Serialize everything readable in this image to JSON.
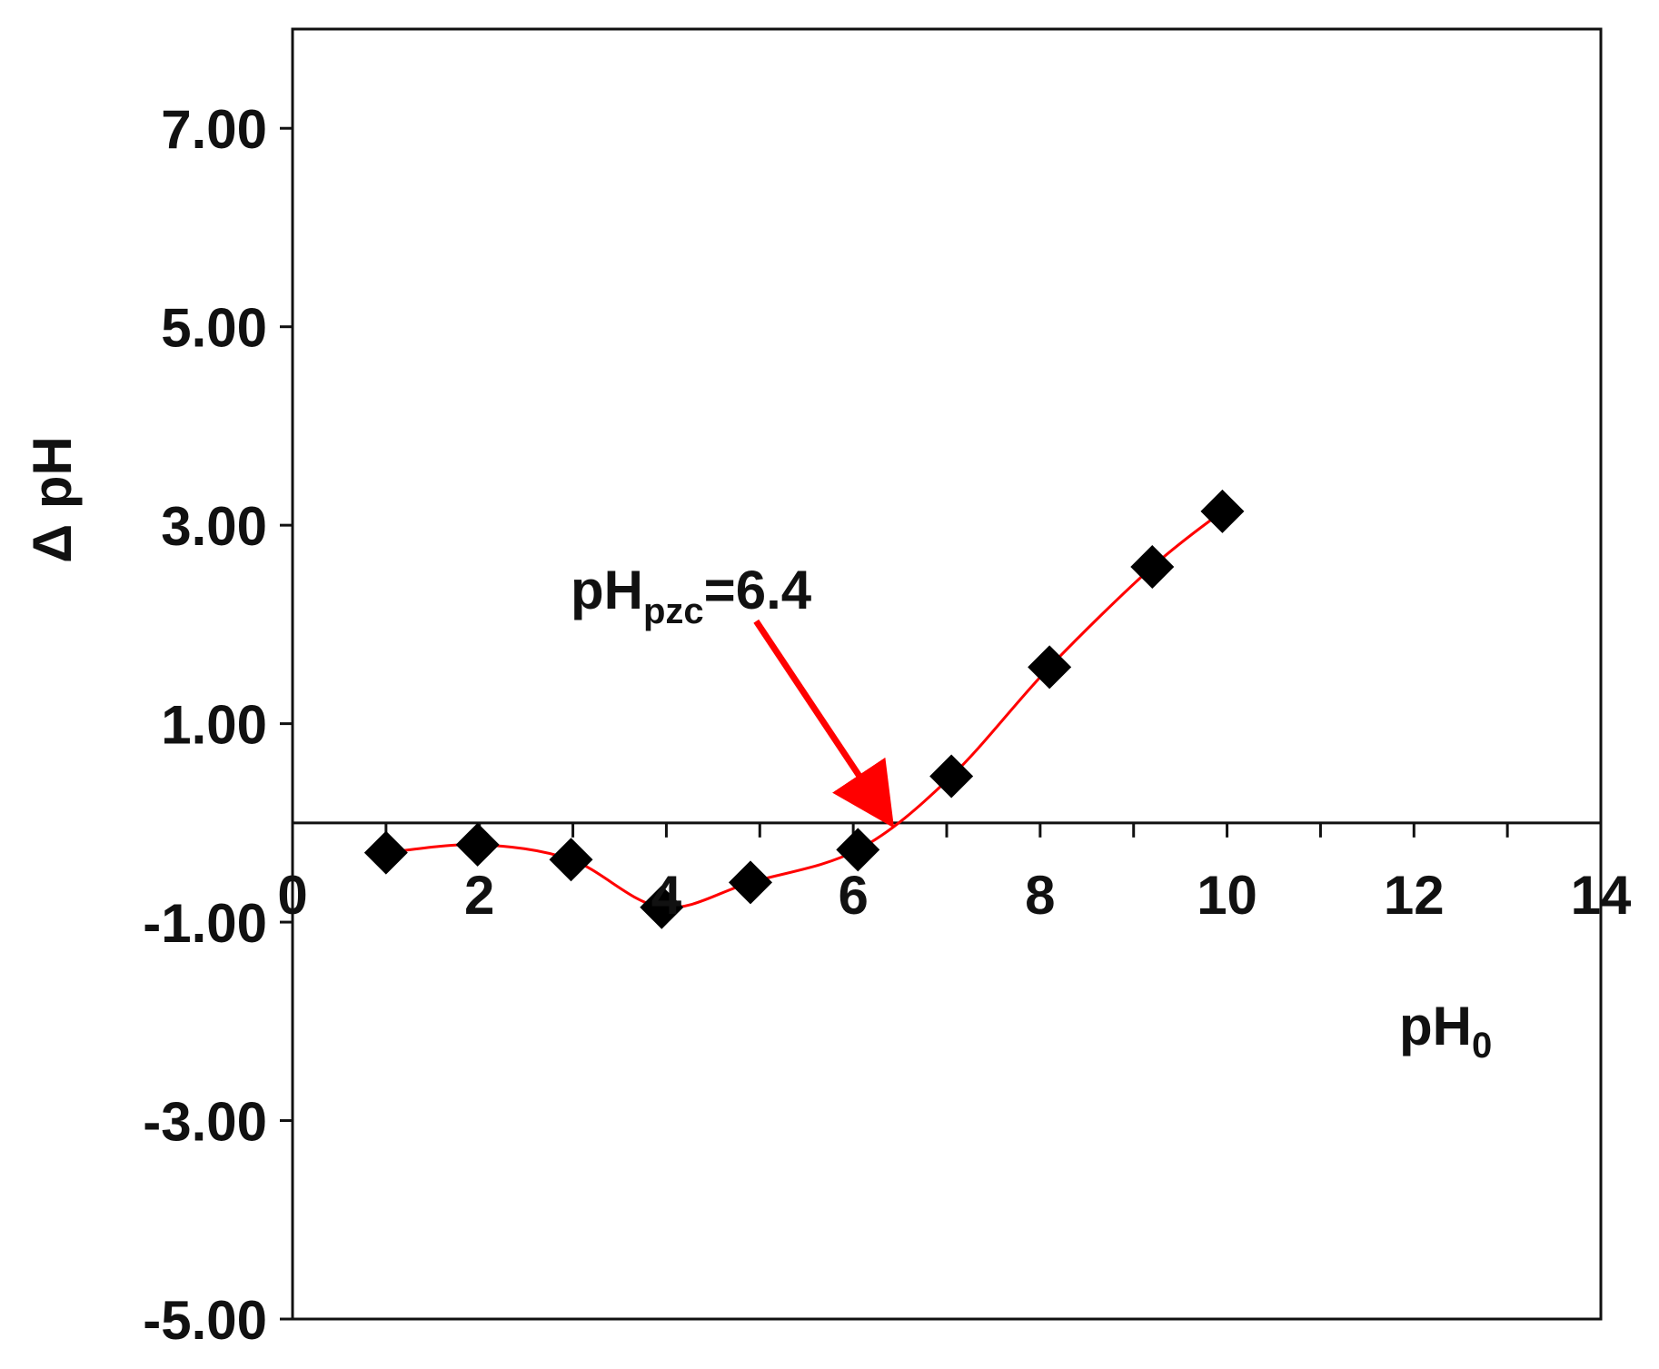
{
  "chart_data": {
    "type": "scatter",
    "title": "",
    "xlabel": "pH",
    "xlabel_subscript": "0",
    "ylabel": "Δ pH",
    "xlim": [
      0,
      14
    ],
    "ylim": [
      -5,
      8
    ],
    "x_ticks": [
      0,
      2,
      4,
      6,
      8,
      10,
      12,
      14
    ],
    "x_tick_labels": [
      "0",
      "2",
      "4",
      "6",
      "8",
      "10",
      "12",
      "14"
    ],
    "x_minor_ticks": [
      1,
      3,
      5,
      7,
      9,
      11,
      13
    ],
    "y_ticks": [
      -5,
      -3,
      -1,
      1,
      3,
      5,
      7
    ],
    "y_tick_labels": [
      "-5.00",
      "-3.00",
      "-1.00",
      "1.00",
      "3.00",
      "5.00",
      "7.00"
    ],
    "grid": false,
    "legend": "none",
    "series": [
      {
        "marker": "diamond",
        "marker_color": "#000000",
        "line_color": "#ff0000",
        "line": "smooth",
        "x": [
          1.0,
          1.98,
          2.98,
          3.95,
          4.9,
          6.05,
          7.05,
          8.1,
          9.2,
          9.95
        ],
        "y": [
          -0.3,
          -0.22,
          -0.37,
          -0.85,
          -0.6,
          -0.27,
          0.47,
          1.57,
          2.58,
          3.14
        ]
      }
    ],
    "annotation": {
      "text_main": "pH",
      "text_sub": "pzc",
      "text_rest": "=6.4",
      "target_x": 6.4,
      "target_y": 0,
      "arrow_color": "#ff0000"
    }
  }
}
